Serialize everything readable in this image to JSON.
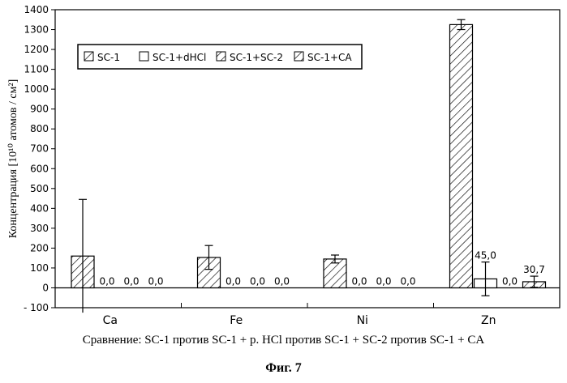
{
  "chart_data": {
    "type": "bar",
    "categories": [
      "Ca",
      "Fe",
      "Ni",
      "Zn"
    ],
    "series": [
      {
        "name": "SC-1",
        "pattern": "hatch",
        "values": [
          160,
          153,
          145,
          1325
        ],
        "errors": [
          285,
          60,
          20,
          25
        ],
        "labels": [
          "",
          "",
          "",
          ""
        ]
      },
      {
        "name": "SC-1+dHCl",
        "pattern": "white",
        "values": [
          0,
          0,
          0,
          45
        ],
        "errors": [
          0,
          0,
          0,
          85
        ],
        "labels": [
          "0,0",
          "0,0",
          "0,0",
          "45,0"
        ]
      },
      {
        "name": "SC-1+SC-2",
        "pattern": "hatch",
        "values": [
          0,
          0,
          0,
          0
        ],
        "errors": [
          0,
          0,
          0,
          0
        ],
        "labels": [
          "0,0",
          "0,0",
          "0,0",
          "0,0"
        ]
      },
      {
        "name": "SC-1+CA",
        "pattern": "hatch",
        "values": [
          0,
          0,
          0,
          30.7
        ],
        "errors": [
          0,
          0,
          0,
          28
        ],
        "labels": [
          "0,0",
          "0,0",
          "0,0",
          "30,7"
        ]
      }
    ],
    "ylabel": "Концентрация [10¹⁰ атомов / см²]",
    "ylim": [
      -100,
      1400
    ],
    "yticks": [
      -100,
      0,
      100,
      200,
      300,
      400,
      500,
      600,
      700,
      800,
      900,
      1000,
      1100,
      1200,
      1300,
      1400
    ],
    "ytick_labels": [
      "- 100",
      "0",
      "100",
      "200",
      "300",
      "400",
      "500",
      "600",
      "700",
      "800",
      "900",
      "1000",
      "1100",
      "1200",
      "1300",
      "1400"
    ],
    "legend_position": "top-left",
    "grid": false
  },
  "caption": "Сравнение: SC-1 против SC-1 + р. HCl против SC-1 + SC-2 против SC-1 + CA",
  "figure_label": "Фиг. 7"
}
